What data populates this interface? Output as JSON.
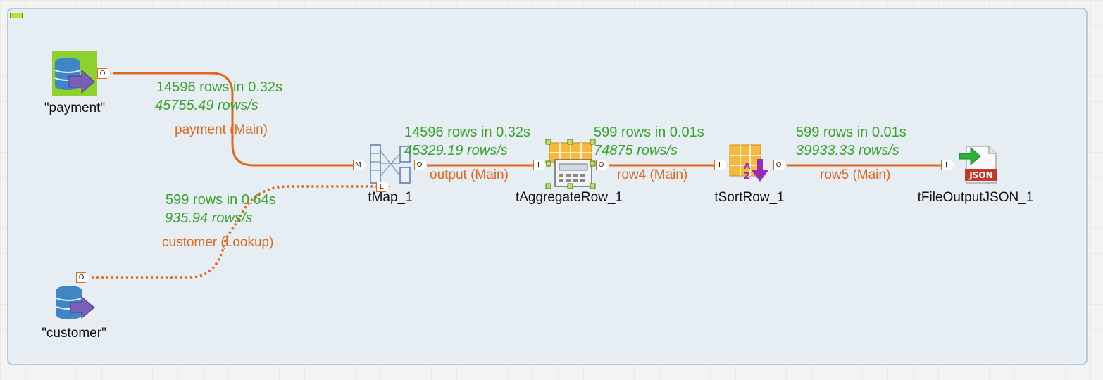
{
  "components": {
    "payment": {
      "label": "\"payment\""
    },
    "customer": {
      "label": "\"customer\""
    },
    "tmap": {
      "label": "tMap_1"
    },
    "aggregate": {
      "label": "tAggregateRow_1"
    },
    "sort": {
      "label": "tSortRow_1"
    },
    "output": {
      "label": "tFileOutputJSON_1",
      "badge": "JSON"
    }
  },
  "links": {
    "payment": {
      "name": "payment (Main)",
      "rows": "14596 rows in 0.32s",
      "rate": "45755.49 rows/s"
    },
    "customer": {
      "name": "customer (Lookup)",
      "rows": "599 rows in 0.64s",
      "rate": "935.94 rows/s"
    },
    "output": {
      "name": "output (Main)",
      "rows": "14596 rows in 0.32s",
      "rate": "45329.19 rows/s"
    },
    "row4": {
      "name": "row4 (Main)",
      "rows": "599 rows in 0.01s",
      "rate": "74875 rows/s"
    },
    "row5": {
      "name": "row5 (Main)",
      "rows": "599 rows in 0.01s",
      "rate": "39933.33 rows/s"
    }
  },
  "ports": {
    "out": "O",
    "in": "I",
    "main": "M",
    "lookup": "L"
  },
  "colors": {
    "link": "#e0681d",
    "stats": "#3aa12a",
    "subjob_bg": "#e6eef3",
    "subjob_border": "#b8cbd6",
    "db_blue": "#3e86c6",
    "highlight_green": "#8fd12f"
  }
}
